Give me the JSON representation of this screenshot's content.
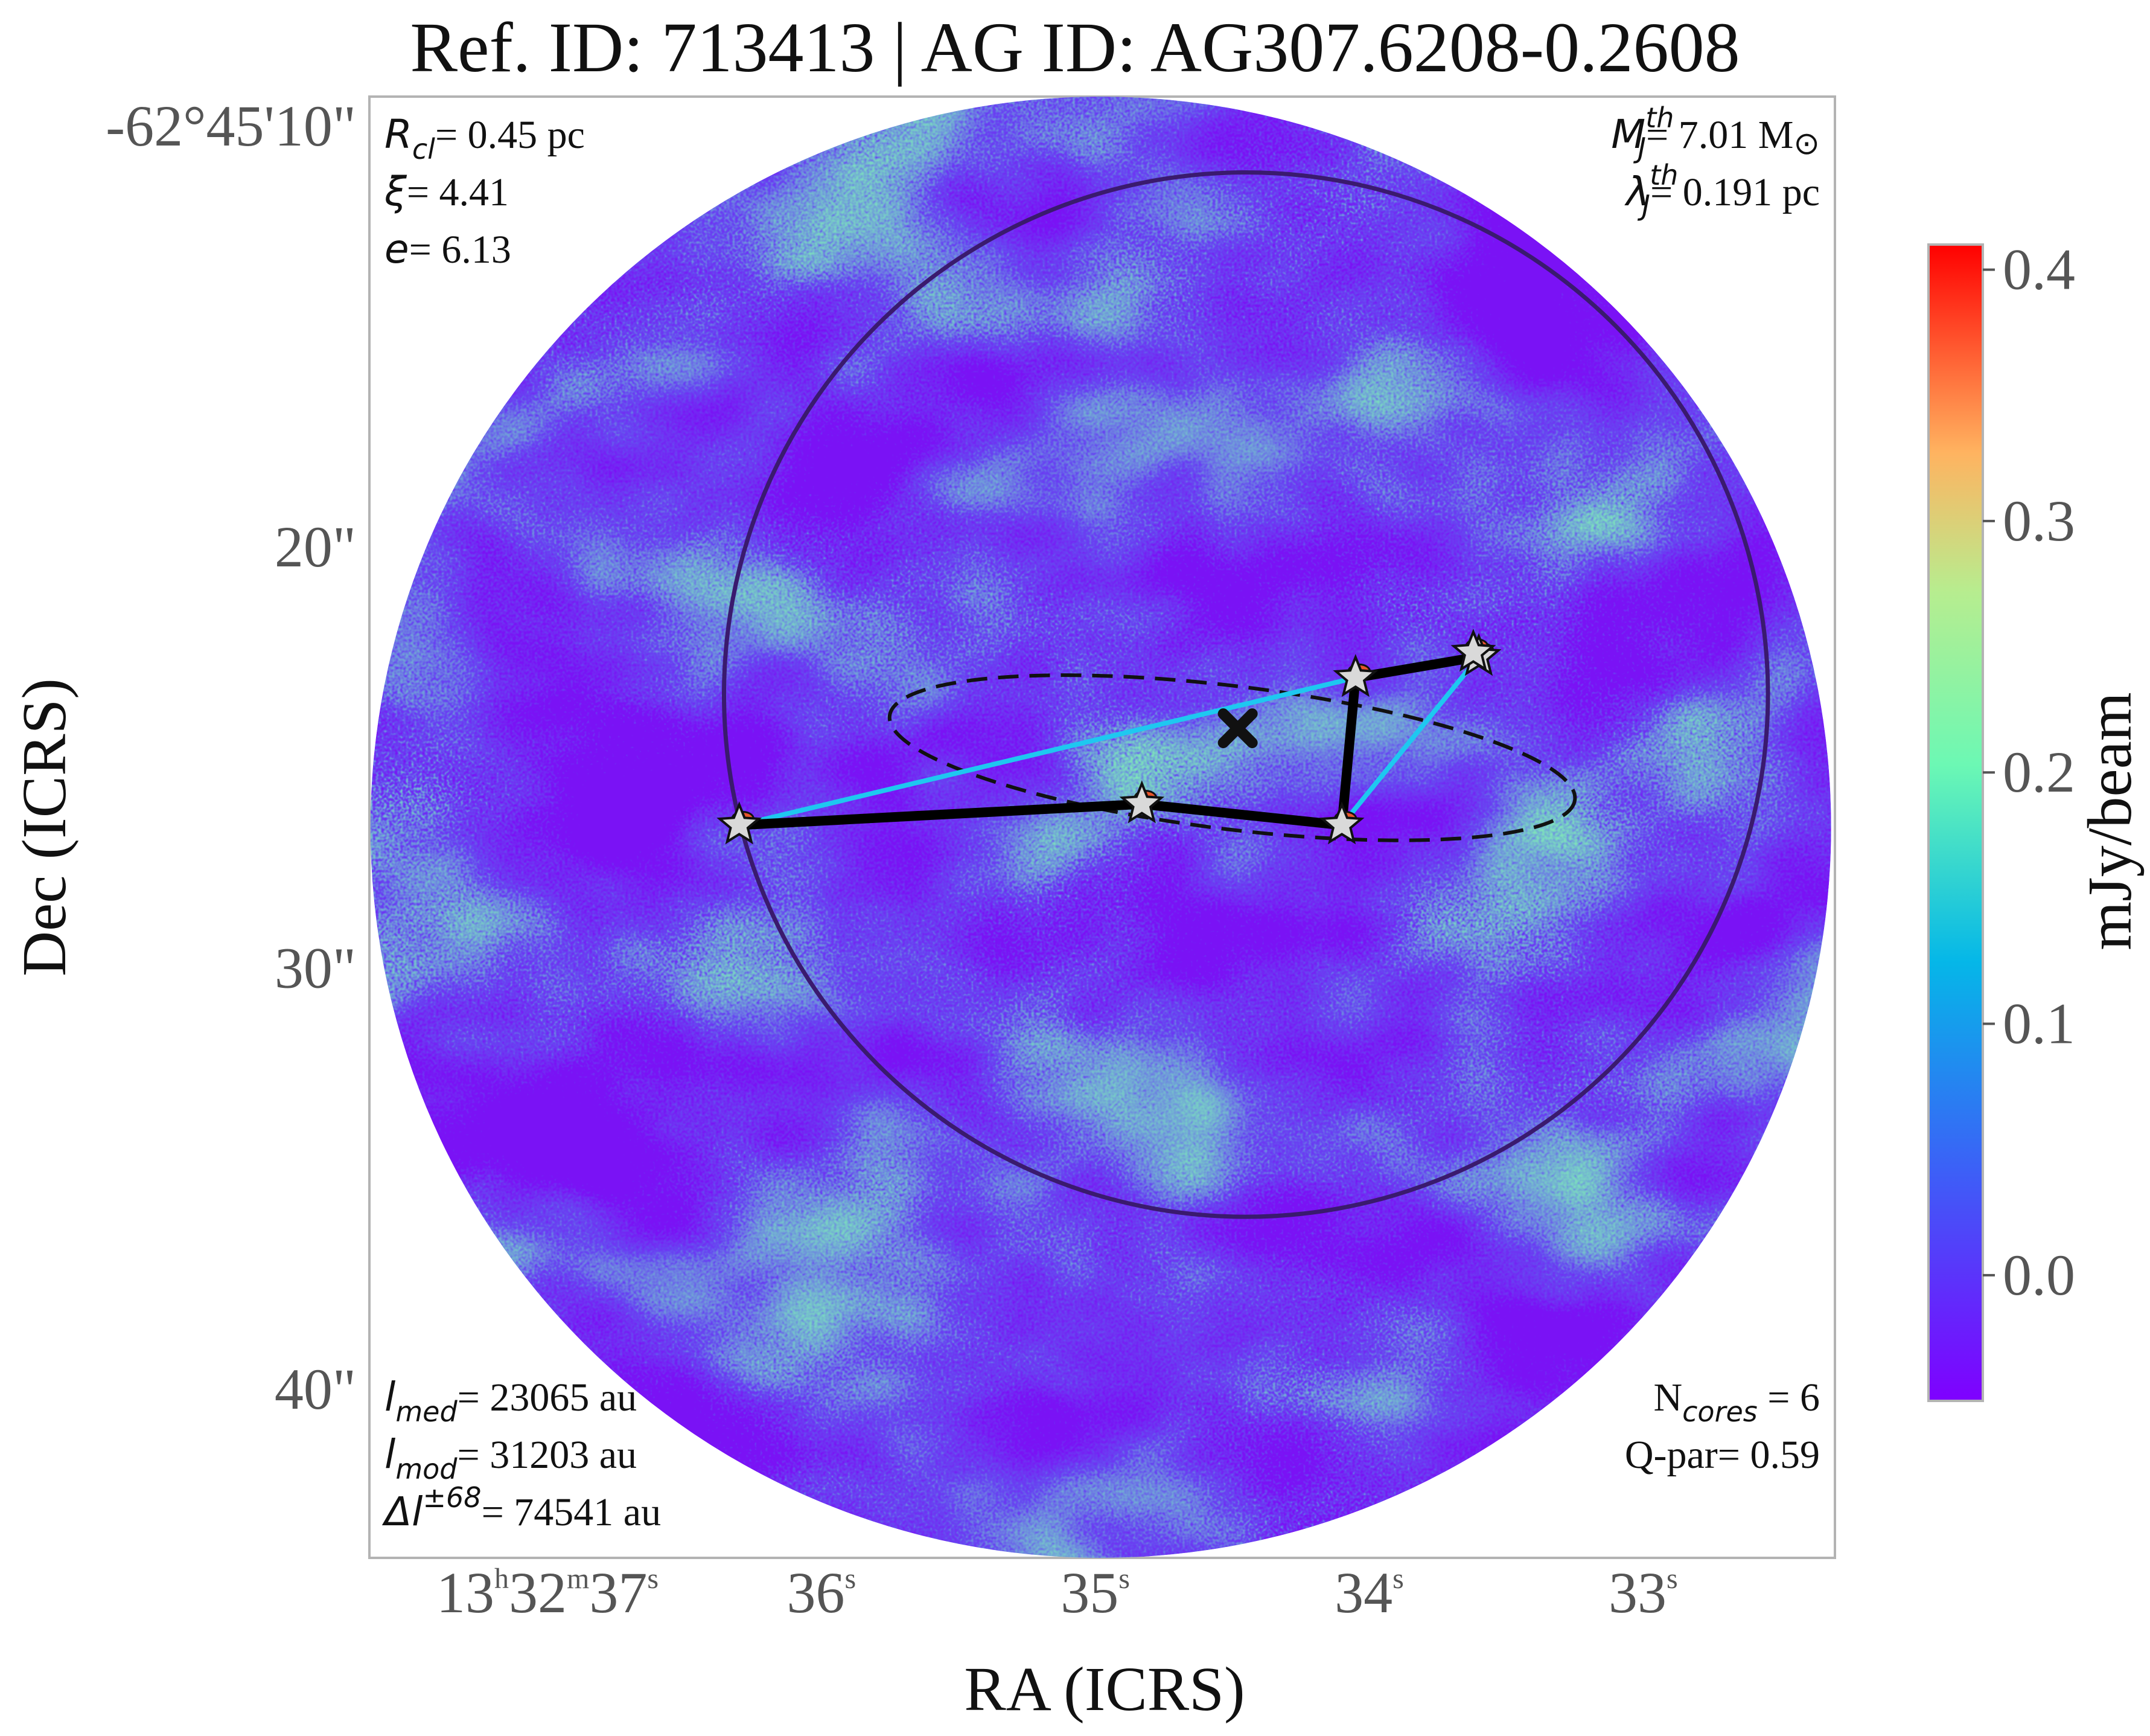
{
  "title": "Ref. ID: 713413 | AG ID: AG307.6208-0.2608",
  "xlabel": "RA (ICRS)",
  "ylabel": "Dec (ICRS)",
  "colorbar": {
    "label": "mJy/beam",
    "ticks": [
      "0.4",
      "0.3",
      "0.2",
      "0.1",
      "0.0"
    ],
    "range": [
      -0.05,
      0.41
    ],
    "colormap": "rainbow"
  },
  "annotations": {
    "r_cl": {
      "sym": "R",
      "sub": "cl",
      "text": "= 0.45 pc"
    },
    "xi": {
      "sym": "ξ",
      "text": "= 4.41"
    },
    "e": {
      "sym": "e",
      "text": "= 6.13"
    },
    "mj": {
      "sym": "M",
      "sub": "J",
      "sup": "th",
      "text": "= 7.01 M",
      "unit": "⊙"
    },
    "lambda": {
      "sym": "λ",
      "sub": "J",
      "sup": "th",
      "text": "= 0.191 pc"
    },
    "l_med": {
      "sym": "l",
      "sub": "med",
      "text": "= 23065 au"
    },
    "l_mod": {
      "sym": "l",
      "sub": "mod",
      "text": "= 31203 au"
    },
    "dl": {
      "sym": "Δl",
      "sup": "±68",
      "text": "= 74541 au"
    },
    "ncores": {
      "sym": "N",
      "sub": "cores",
      "text": " = 6"
    },
    "qpar": {
      "text": "Q-par= 0.59"
    }
  },
  "chart_data": {
    "type": "image",
    "title": "Ref. ID: 713413 | AG ID: AG307.6208-0.2608",
    "xlabel": "RA (ICRS)",
    "ylabel": "Dec (ICRS)",
    "x_ticks": [
      {
        "h": "13",
        "m": "32",
        "s": "37",
        "ra_sec": 37.0
      },
      {
        "s": "36",
        "ra_sec": 36.0
      },
      {
        "s": "35",
        "ra_sec": 35.0
      },
      {
        "s": "34",
        "ra_sec": 34.0
      },
      {
        "s": "33",
        "ra_sec": 33.0
      }
    ],
    "y_ticks": [
      {
        "label": "-62°45'10\"",
        "dec_arcsec": 10
      },
      {
        "label": "20\"",
        "dec_arcsec": 20
      },
      {
        "label": "30\"",
        "dec_arcsec": 30
      },
      {
        "label": "40\"",
        "dec_arcsec": 40
      }
    ],
    "xlim": [
      37.65,
      32.3
    ],
    "ylim": [
      9.3,
      44.0
    ],
    "field_of_view": {
      "ra": 34.98,
      "dec": 26.65,
      "radius_arcsec": 17.35
    },
    "cores": [
      {
        "ra": 36.3,
        "dec": 26.6
      },
      {
        "ra": 34.83,
        "dec": 26.1
      },
      {
        "ra": 34.1,
        "dec": 26.6
      },
      {
        "ra": 34.05,
        "dec": 23.1
      },
      {
        "ra": 33.6,
        "dec": 22.6
      },
      {
        "ra": 33.62,
        "dec": 22.5
      }
    ],
    "mst_edges": [
      [
        0,
        1
      ],
      [
        1,
        2
      ],
      [
        2,
        3
      ],
      [
        3,
        4
      ]
    ],
    "hull": [
      [
        0,
        3
      ],
      [
        3,
        4
      ],
      [
        4,
        2
      ],
      [
        2,
        1
      ],
      [
        1,
        0
      ]
    ],
    "cores_ellipse": {
      "ra": 34.5,
      "dec": 25.0,
      "a_arcsec": 8.2,
      "b_arcsec": 1.7,
      "pa_deg": 97
    },
    "center_mark": {
      "ra": 34.48,
      "dec": 24.3
    },
    "clump_circle": {
      "ra": 34.45,
      "dec": 23.5,
      "radius_arcsec": 12.4
    }
  }
}
